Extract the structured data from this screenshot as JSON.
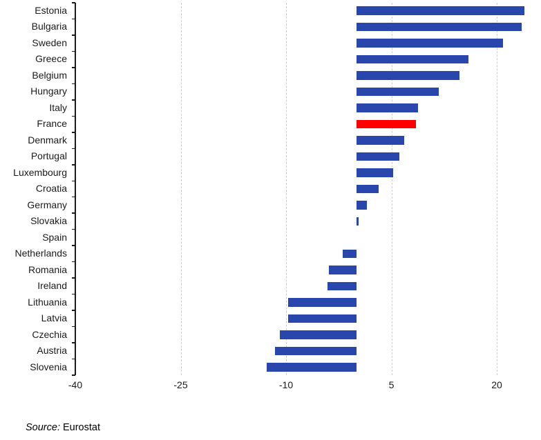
{
  "chart_data": {
    "type": "bar",
    "orientation": "horizontal",
    "title": "",
    "xlabel": "",
    "ylabel": "",
    "categories": [
      "Estonia",
      "Bulgaria",
      "Sweden",
      "Greece",
      "Belgium",
      "Hungary",
      "Italy",
      "France",
      "Denmark",
      "Portugal",
      "Luxembourg",
      "Croatia",
      "Germany",
      "Slovakia",
      "Spain",
      "Netherlands",
      "Romania",
      "Ireland",
      "Lithuania",
      "Latvia",
      "Czechia",
      "Austria",
      "Slovenia"
    ],
    "values": [
      23.9,
      23.5,
      20.9,
      16.0,
      14.7,
      11.7,
      8.8,
      8.5,
      6.8,
      6.1,
      5.2,
      3.2,
      1.5,
      0.3,
      0.0,
      -1.9,
      -3.9,
      -4.1,
      -9.7,
      -9.7,
      -10.9,
      -11.6,
      -12.8
    ],
    "highlight_category": "France",
    "colors": {
      "bar": "#2846ac",
      "highlight": "#fe0000",
      "gridline": "#cccccc",
      "axis": "#1a1a1a"
    },
    "xticks": [
      -40,
      -25,
      -10,
      5,
      20
    ],
    "xlim": [
      -40,
      26
    ],
    "grid": "vertical-dashed",
    "legend": "none"
  },
  "source": {
    "prefix": "Source:",
    "text": "Eurostat"
  }
}
